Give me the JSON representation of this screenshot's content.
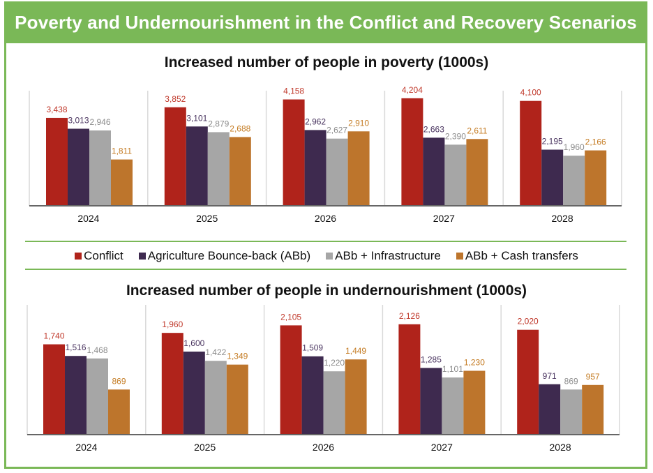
{
  "header": {
    "title": "Poverty and Undernourishment  in the Conflict and Recovery Scenarios"
  },
  "colors": {
    "conflict": "#b0231b",
    "abb": "#3e2a4f",
    "infrastructure": "#a6a6a6",
    "cash": "#bd752c",
    "frame_green": "#7ab857"
  },
  "legend": [
    {
      "label": "Conflict",
      "color": "#b0231b"
    },
    {
      "label": "Agriculture Bounce-back (ABb)",
      "color": "#3e2a4f"
    },
    {
      "label": "ABb + Infrastructure",
      "color": "#a6a6a6"
    },
    {
      "label": "ABb + Cash transfers",
      "color": "#bd752c"
    }
  ],
  "chart_data": [
    {
      "type": "bar",
      "title": "Increased number of people in poverty (1000s)",
      "xlabel": "",
      "ylabel": "",
      "ylim": [
        0,
        4500
      ],
      "grid": false,
      "legend_position": "bottom",
      "categories": [
        "2024",
        "2025",
        "2026",
        "2027",
        "2028"
      ],
      "series": [
        {
          "name": "Conflict",
          "color": "#b0231b",
          "label_color": "#c0392b",
          "values": [
            3438,
            3852,
            4158,
            4204,
            4100
          ],
          "labels": [
            "3,438",
            "3,852",
            "4,158",
            "4,204",
            "4,100"
          ]
        },
        {
          "name": "Agriculture Bounce-back (ABb)",
          "color": "#3e2a4f",
          "label_color": "#4a3560",
          "values": [
            3013,
            3101,
            2962,
            2663,
            2195
          ],
          "labels": [
            "3,013",
            "3,101",
            "2,962",
            "2,663",
            "2,195"
          ]
        },
        {
          "name": "ABb + Infrastructure",
          "color": "#a6a6a6",
          "label_color": "#8c8c8c",
          "values": [
            2946,
            2879,
            2627,
            2390,
            1960
          ],
          "labels": [
            "2,946",
            "2,879",
            "2,627",
            "2,390",
            "1,960"
          ]
        },
        {
          "name": "ABb + Cash transfers",
          "color": "#bd752c",
          "label_color": "#c47b22",
          "values": [
            1811,
            2688,
            2910,
            2611,
            2166
          ],
          "labels": [
            "1,811",
            "2,688",
            "2,910",
            "2,611",
            "2,166"
          ]
        }
      ]
    },
    {
      "type": "bar",
      "title": "Increased number of people in undernourishment (1000s)",
      "xlabel": "",
      "ylabel": "",
      "ylim": [
        0,
        2500
      ],
      "grid": false,
      "legend_position": "top",
      "categories": [
        "2024",
        "2025",
        "2026",
        "2027",
        "2028"
      ],
      "series": [
        {
          "name": "Conflict",
          "color": "#b0231b",
          "label_color": "#c0392b",
          "values": [
            1740,
            1960,
            2105,
            2126,
            2020
          ],
          "labels": [
            "1,740",
            "1,960",
            "2,105",
            "2,126",
            "2,020"
          ]
        },
        {
          "name": "Agriculture Bounce-back (ABb)",
          "color": "#3e2a4f",
          "label_color": "#4a3560",
          "values": [
            1516,
            1600,
            1509,
            1285,
            971
          ],
          "labels": [
            "1,516",
            "1,600",
            "1,509",
            "1,285",
            "971"
          ]
        },
        {
          "name": "ABb + Infrastructure",
          "color": "#a6a6a6",
          "label_color": "#8c8c8c",
          "values": [
            1468,
            1422,
            1220,
            1101,
            869
          ],
          "labels": [
            "1,468",
            "1,422",
            "1,220",
            "1,101",
            "869"
          ]
        },
        {
          "name": "ABb + Cash transfers",
          "color": "#bd752c",
          "label_color": "#c47b22",
          "values": [
            869,
            1349,
            1449,
            1230,
            957
          ],
          "labels": [
            "869",
            "1,349",
            "1,449",
            "1,230",
            "957"
          ]
        }
      ]
    }
  ]
}
